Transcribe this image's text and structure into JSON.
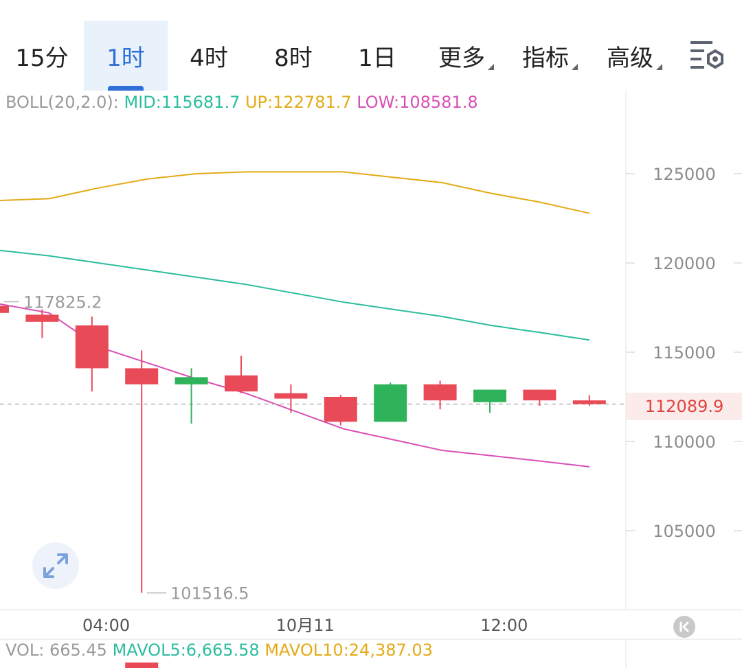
{
  "tabs": [
    {
      "label": "15分",
      "active": false,
      "dropdown": false
    },
    {
      "label": "1时",
      "active": true,
      "dropdown": false
    },
    {
      "label": "4时",
      "active": false,
      "dropdown": false
    },
    {
      "label": "8时",
      "active": false,
      "dropdown": false
    },
    {
      "label": "1日",
      "active": false,
      "dropdown": false
    },
    {
      "label": "更多",
      "active": false,
      "dropdown": true
    },
    {
      "label": "指标",
      "active": false,
      "dropdown": true
    },
    {
      "label": "高级",
      "active": false,
      "dropdown": true
    }
  ],
  "settings_icon": "chart-settings-icon",
  "legend": {
    "boll_label": "BOLL(20,2.0):",
    "mid": "MID:115681.7",
    "up": "UP:122781.7",
    "low": "LOW:108581.8"
  },
  "vol_legend": {
    "vol": "VOL: 665.45",
    "mavol5": "MAVOL5:6,665.58",
    "mavol10": "MAVOL10:24,387.03"
  },
  "current_price": "112089.9",
  "colors": {
    "up_candle": "#e94a58",
    "down_candle": "#2eb35a",
    "boll_up": "#e3ab16",
    "boll_mid": "#2bbd9f",
    "boll_low": "#d94fb5",
    "accent": "#2f6fd8"
  },
  "chart_data": {
    "type": "candlestick",
    "x_ticks": [
      {
        "label": "04:00",
        "index": 1.5
      },
      {
        "label": "10月11",
        "index": 5.5
      },
      {
        "label": "12:00",
        "index": 9.5
      }
    ],
    "y_ticks": [
      105000,
      110000,
      115000,
      120000,
      125000
    ],
    "ylim": [
      100000,
      129600
    ],
    "grid": false,
    "high_marker": "117825.2",
    "low_marker": "101516.5",
    "high_index": 0,
    "low_index": 2.5,
    "candles": [
      {
        "open": 117200,
        "close": 117600,
        "high": 117800,
        "low": 116900,
        "up": true
      },
      {
        "open": 116700,
        "close": 117100,
        "high": 117400,
        "low": 115800,
        "up": true
      },
      {
        "open": 114100,
        "close": 116500,
        "high": 117000,
        "low": 112800,
        "up": true
      },
      {
        "open": 113200,
        "close": 114100,
        "high": 115100,
        "low": 101516.5,
        "up": true
      },
      {
        "open": 113200,
        "close": 113600,
        "high": 114100,
        "low": 111000,
        "up": false
      },
      {
        "open": 112800,
        "close": 113700,
        "high": 114800,
        "low": 112700,
        "up": true
      },
      {
        "open": 112400,
        "close": 112700,
        "high": 113200,
        "low": 111600,
        "up": true
      },
      {
        "open": 111100,
        "close": 112500,
        "high": 112600,
        "low": 110900,
        "up": true
      },
      {
        "open": 111100,
        "close": 113200,
        "high": 113300,
        "low": 111100,
        "up": false
      },
      {
        "open": 112300,
        "close": 113200,
        "high": 113400,
        "low": 111800,
        "up": true
      },
      {
        "open": 112200,
        "close": 112900,
        "high": 112900,
        "low": 111600,
        "up": false
      },
      {
        "open": 112300,
        "close": 112900,
        "high": 112900,
        "low": 112000,
        "up": true
      },
      {
        "open": 112089.9,
        "close": 112300,
        "high": 112600,
        "low": 112000,
        "up": true
      }
    ],
    "boll_up": [
      123500,
      123600,
      124200,
      124700,
      125000,
      125100,
      125100,
      125100,
      124800,
      124500,
      123900,
      123400,
      122781.7
    ],
    "boll_mid": [
      120700,
      120400,
      120000,
      119600,
      119200,
      118800,
      118300,
      117800,
      117400,
      117000,
      116500,
      116100,
      115681.7
    ],
    "boll_low": [
      117700,
      117200,
      115300,
      114400,
      113500,
      112700,
      111700,
      110700,
      110100,
      109500,
      109200,
      108900,
      108581.8
    ],
    "volume_bar_index": 3
  }
}
